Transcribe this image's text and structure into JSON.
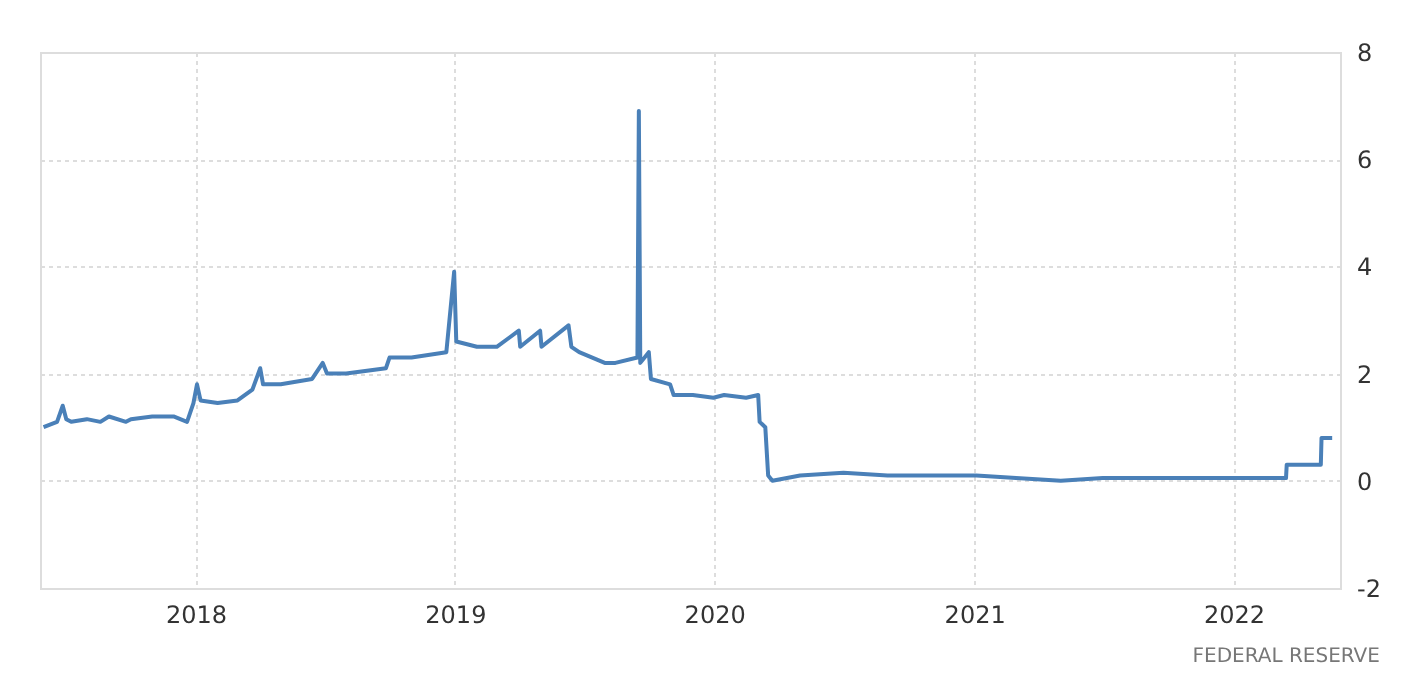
{
  "chart_data": {
    "type": "line",
    "x": [
      "2017-06-01",
      "2017-06-20",
      "2017-06-28",
      "2017-07-03",
      "2017-07-10",
      "2017-08-01",
      "2017-08-20",
      "2017-09-01",
      "2017-09-25",
      "2017-10-02",
      "2017-11-01",
      "2017-12-01",
      "2017-12-20",
      "2017-12-29",
      "2018-01-03",
      "2018-01-08",
      "2018-02-01",
      "2018-03-01",
      "2018-03-22",
      "2018-04-02",
      "2018-04-06",
      "2018-05-01",
      "2018-06-14",
      "2018-06-29",
      "2018-07-05",
      "2018-08-01",
      "2018-09-26",
      "2018-10-01",
      "2018-11-01",
      "2018-12-20",
      "2018-12-31",
      "2019-01-03",
      "2019-02-01",
      "2019-03-01",
      "2019-04-01",
      "2019-04-03",
      "2019-05-01",
      "2019-05-03",
      "2019-06-10",
      "2019-06-14",
      "2019-06-25",
      "2019-07-31",
      "2019-08-15",
      "2019-09-15",
      "2019-09-17",
      "2019-09-19",
      "2019-10-01",
      "2019-10-04",
      "2019-10-31",
      "2019-11-05",
      "2019-12-02",
      "2019-12-31",
      "2020-01-15",
      "2020-02-15",
      "2020-03-03",
      "2020-03-05",
      "2020-03-13",
      "2020-03-17",
      "2020-03-23",
      "2020-05-01",
      "2020-07-01",
      "2020-09-01",
      "2020-11-01",
      "2021-01-04",
      "2021-03-01",
      "2021-05-03",
      "2021-07-01",
      "2021-09-01",
      "2021-11-01",
      "2022-01-03",
      "2022-03-16",
      "2022-03-17",
      "2022-05-04",
      "2022-05-05",
      "2022-05-20"
    ],
    "series": [
      {
        "color": "#4a80b8",
        "values": [
          1.0,
          1.1,
          1.4,
          1.15,
          1.1,
          1.15,
          1.1,
          1.2,
          1.1,
          1.15,
          1.2,
          1.2,
          1.1,
          1.45,
          1.8,
          1.5,
          1.45,
          1.5,
          1.7,
          2.1,
          1.8,
          1.8,
          1.9,
          2.2,
          2.0,
          2.0,
          2.1,
          2.3,
          2.3,
          2.4,
          3.9,
          2.6,
          2.5,
          2.5,
          2.8,
          2.5,
          2.8,
          2.5,
          2.9,
          2.5,
          2.4,
          2.2,
          2.2,
          2.3,
          6.9,
          2.2,
          2.4,
          1.9,
          1.8,
          1.6,
          1.6,
          1.55,
          1.6,
          1.55,
          1.6,
          1.1,
          1.0,
          0.1,
          0.0,
          0.1,
          0.15,
          0.1,
          0.1,
          0.1,
          0.05,
          0.0,
          0.05,
          0.05,
          0.05,
          0.05,
          0.05,
          0.3,
          0.3,
          0.8,
          0.8
        ]
      }
    ],
    "xlim": [
      "2017-05-27",
      "2022-05-31"
    ],
    "xticks": [
      {
        "value": "2018-01-01",
        "label": "2018"
      },
      {
        "value": "2019-01-01",
        "label": "2019"
      },
      {
        "value": "2020-01-01",
        "label": "2020"
      },
      {
        "value": "2021-01-01",
        "label": "2021"
      },
      {
        "value": "2022-01-01",
        "label": "2022"
      }
    ],
    "ylim": [
      -2,
      8
    ],
    "yticks": [
      -2,
      0,
      2,
      4,
      6,
      8
    ],
    "grid": true,
    "annotations": [
      "FEDERAL RESERVE"
    ]
  }
}
